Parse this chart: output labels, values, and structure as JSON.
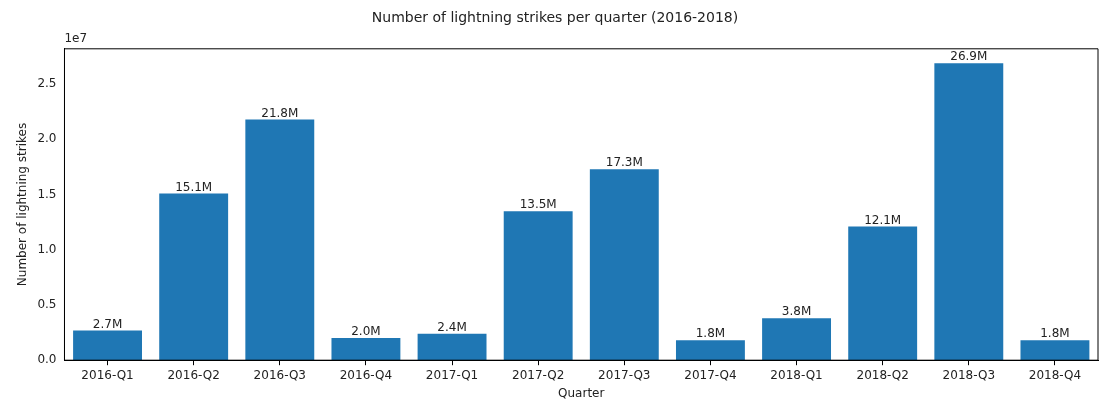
{
  "chart_data": {
    "type": "bar",
    "title": "Number of lightning strikes per quarter (2016-2018)",
    "xlabel": "Quarter",
    "ylabel": "Number of lightning strikes",
    "categories": [
      "2016-Q1",
      "2016-Q2",
      "2016-Q3",
      "2016-Q4",
      "2017-Q1",
      "2017-Q2",
      "2017-Q3",
      "2017-Q4",
      "2018-Q1",
      "2018-Q2",
      "2018-Q3",
      "2018-Q4"
    ],
    "values": [
      0.27,
      1.51,
      2.18,
      0.2,
      0.24,
      1.35,
      1.73,
      0.18,
      0.38,
      1.21,
      2.69,
      0.18
    ],
    "color": "#1f77b4",
    "ylim": [
      0,
      2.82
    ],
    "yticks": [
      {
        "value": 0,
        "label": "0.0"
      },
      0.5,
      {
        "value": 1,
        "label": "1.0"
      },
      1.5,
      {
        "value": 2,
        "label": "2.0"
      },
      2.5
    ],
    "annotations": [
      "1e7",
      {
        "text": "2.7M",
        "x": "2016-Q1",
        "y": 0.27
      },
      {
        "text": "15.1M",
        "x": "2016-Q2",
        "y": 1.51
      },
      {
        "text": "21.8M",
        "x": "2016-Q3",
        "y": 2.18
      },
      {
        "text": "2.0M",
        "x": "2016-Q4",
        "y": 0.2
      },
      {
        "text": "2.4M",
        "x": "2017-Q1",
        "y": 0.24
      },
      {
        "text": "13.5M",
        "x": "2017-Q2",
        "y": 1.35
      },
      {
        "text": "17.3M",
        "x": "2017-Q3",
        "y": 1.73
      },
      {
        "text": "1.8M",
        "x": "2017-Q4",
        "y": 0.18
      },
      {
        "text": "3.8M",
        "x": "2018-Q1",
        "y": 0.38
      },
      {
        "text": "12.1M",
        "x": "2018-Q2",
        "y": 1.21
      },
      {
        "text": "26.9M",
        "x": "2018-Q3",
        "y": 2.69
      },
      {
        "text": "1.8M",
        "x": "2018-Q4",
        "y": 0.18
      }
    ],
    "grid": false,
    "legend": false
  }
}
